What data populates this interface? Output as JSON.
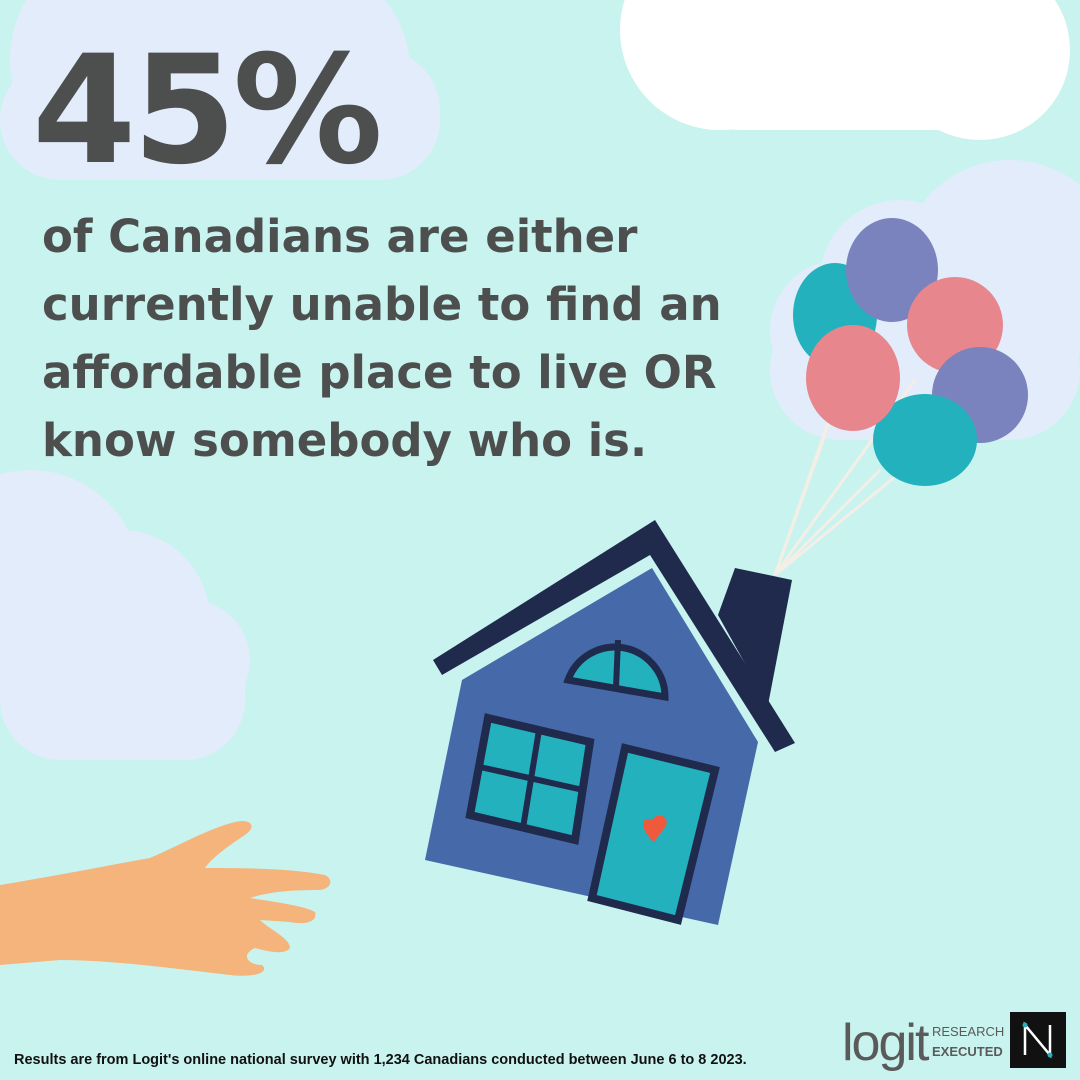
{
  "headline": {
    "stat": "45%",
    "lines": [
      "of Canadians are either",
      "currently unable to find an",
      "affordable place to live OR",
      "know somebody who is."
    ]
  },
  "footer": {
    "note": "Results are from Logit's online national survey with 1,234 Canadians conducted between June 6 to 8 2023."
  },
  "logos": {
    "logit": "logit",
    "tagline": [
      "RESEARCH",
      "EXECUTED"
    ]
  }
}
